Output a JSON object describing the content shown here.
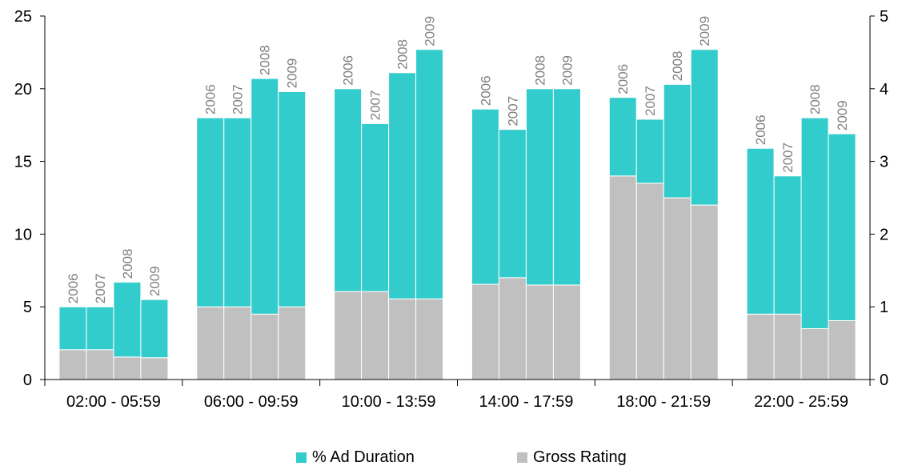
{
  "colors": {
    "ad_duration": "#33CCCC",
    "gross_rating": "#C0C0C0",
    "year_label": "#808080",
    "axis": "#000000"
  },
  "legend": {
    "ad_duration_label": "% Ad Duration",
    "gross_rating_label": "Gross Rating",
    "placement": "bottom"
  },
  "chart_data": {
    "type": "bar",
    "categories": [
      "02:00 - 05:59",
      "06:00 - 09:59",
      "10:00 - 13:59",
      "14:00 - 17:59",
      "18:00 - 21:59",
      "22:00 - 25:59"
    ],
    "year_labels": [
      "2006",
      "2007",
      "2008",
      "2009"
    ],
    "series": [
      {
        "name": "% Ad Duration",
        "axis": "left",
        "values": [
          [
            5.0,
            5.0,
            6.7,
            5.5
          ],
          [
            18.0,
            18.0,
            20.7,
            19.8
          ],
          [
            20.0,
            17.6,
            21.1,
            22.7
          ],
          [
            18.6,
            17.2,
            20.0,
            20.0
          ],
          [
            19.4,
            17.9,
            20.3,
            22.7
          ],
          [
            15.9,
            14.0,
            18.0,
            16.9
          ]
        ]
      },
      {
        "name": "Gross Rating",
        "axis": "right",
        "values": [
          [
            0.41,
            0.41,
            0.31,
            0.3
          ],
          [
            1.0,
            1.0,
            0.9,
            1.0
          ],
          [
            1.21,
            1.21,
            1.11,
            1.11
          ],
          [
            1.31,
            1.4,
            1.3,
            1.3
          ],
          [
            2.8,
            2.7,
            2.5,
            2.4
          ],
          [
            0.9,
            0.9,
            0.7,
            0.81
          ]
        ]
      }
    ],
    "y_left": {
      "ticks": [
        "0",
        "5",
        "10",
        "15",
        "20",
        "25"
      ],
      "ylim": [
        0,
        25
      ]
    },
    "y_right": {
      "ticks": [
        "0",
        "1",
        "2",
        "3",
        "4",
        "5"
      ],
      "ylim": [
        0,
        5
      ]
    },
    "grid": false
  }
}
